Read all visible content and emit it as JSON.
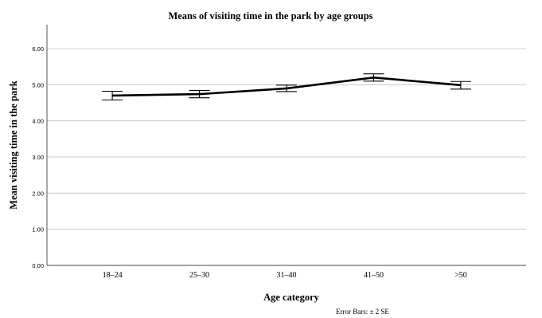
{
  "chart_data": {
    "type": "line",
    "title": "Means of visiting time in the park by age groups",
    "xlabel": "Age category",
    "ylabel": "Mean visiting time in the park",
    "categories": [
      "18–24",
      "25–30",
      "31–40",
      "41–50",
      ">50"
    ],
    "series": [
      {
        "values": [
          4.7,
          4.74,
          4.9,
          5.2,
          4.99
        ],
        "error_low": [
          4.58,
          4.64,
          4.81,
          5.1,
          4.88
        ],
        "error_high": [
          4.82,
          4.84,
          4.99,
          5.3,
          5.09
        ]
      }
    ],
    "ylim": [
      0,
      6.0
    ],
    "yticks": [
      "0.00",
      "1.00",
      "2.00",
      "3.00",
      "4.00",
      "5.00",
      "6.00"
    ],
    "grid": "horizontal",
    "note": "Error Bars: ± 2 SE",
    "colors": {
      "line": "#000000",
      "grid": "#bdbdbd"
    }
  }
}
